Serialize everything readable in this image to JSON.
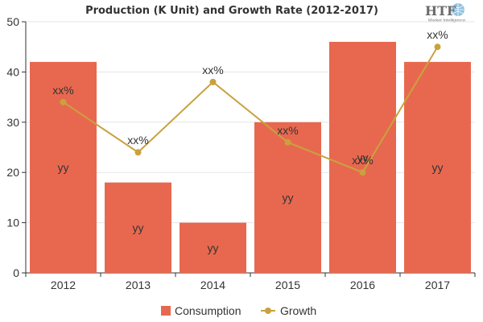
{
  "chart_data": {
    "type": "bar",
    "title": "Production (K Unit) and Growth Rate (2012-2017)",
    "categories": [
      "2012",
      "2013",
      "2014",
      "2015",
      "2016",
      "2017"
    ],
    "series": [
      {
        "name": "Consumption",
        "type": "bar",
        "values": [
          42,
          18,
          10,
          30,
          46,
          42
        ],
        "labels": [
          "yy",
          "yy",
          "yy",
          "yy",
          "yy",
          "yy"
        ]
      },
      {
        "name": "Growth",
        "type": "line",
        "values": [
          34,
          24,
          38,
          26,
          20,
          45
        ],
        "labels": [
          "xx%",
          "xx%",
          "xx%",
          "xx%",
          "xx%",
          "xx%"
        ]
      }
    ],
    "ylim": [
      0,
      50
    ],
    "yticks": [
      0,
      10,
      20,
      30,
      40,
      50
    ],
    "xlabel": "",
    "ylabel": "",
    "grid": true,
    "legend": "bottom-center"
  },
  "colors": {
    "bar": "#e8684f",
    "line": "#c9a23e",
    "grid": "#e6e6e6",
    "axis": "#333333"
  },
  "logo": {
    "text": "HTF",
    "subtext": "Market Intelligence"
  }
}
